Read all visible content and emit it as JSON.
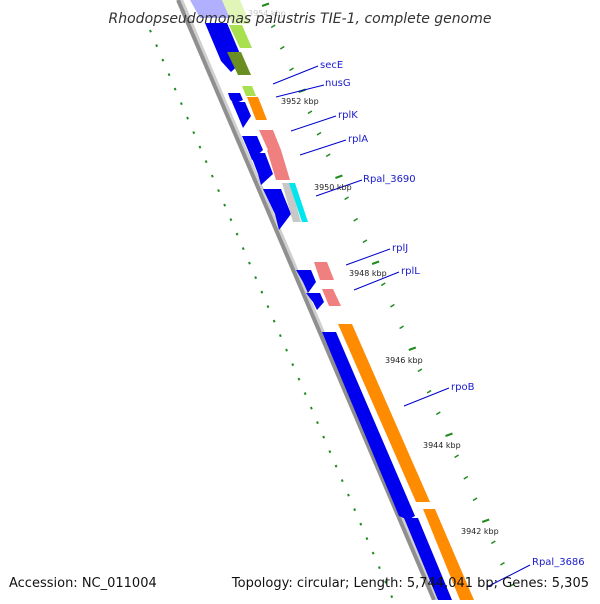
{
  "title": "Rhodopseudomonas palustris TIE-1, complete genome",
  "footer": {
    "accession": "Accession: NC_011004",
    "topology": "Topology: circular; Length: 5,744,041 bp; Genes: 5,305"
  },
  "colors": {
    "backbone": "#8f8f8f",
    "cds_forward": "#0000ee",
    "orange_gene": "#ff8c00",
    "pink_gene": "#f08080",
    "lime_gene": "#a8e050",
    "olive_gene": "#6b8e23",
    "cyan_gene": "#00e5ee",
    "label_line": "#0000cc",
    "tick": "#228b22"
  },
  "ticks": [
    {
      "label": "3954 kbp"
    },
    {
      "label": "3952 kbp"
    },
    {
      "label": "3950 kbp"
    },
    {
      "label": "3948 kbp"
    },
    {
      "label": "3946 kbp"
    },
    {
      "label": "3944 kbp"
    },
    {
      "label": "3942 kbp"
    }
  ],
  "genes": [
    {
      "label": "secE"
    },
    {
      "label": "nusG"
    },
    {
      "label": "rplK"
    },
    {
      "label": "rplA"
    },
    {
      "label": "Rpal_3690"
    },
    {
      "label": "rplJ"
    },
    {
      "label": "rplL"
    },
    {
      "label": "rpoB"
    },
    {
      "label": "Rpal_3686"
    }
  ]
}
